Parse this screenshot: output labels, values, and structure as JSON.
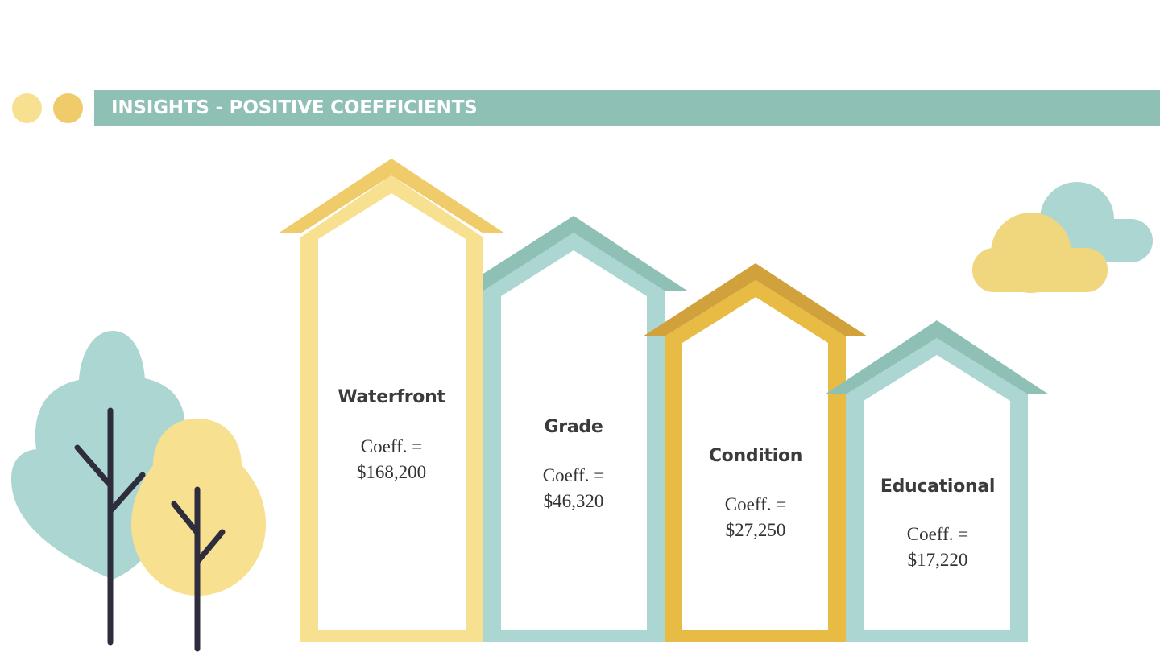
{
  "header": {
    "title": "INSIGHTS - POSITIVE COEFFICIENTS"
  },
  "colors": {
    "teal_bar": "#8fc0b6",
    "light_yellow": "#f7e08f",
    "gold": "#f0cb6a",
    "light_teal": "#acd6d1",
    "dark_teal": "#8fc0b6",
    "mustard": "#e8bb45",
    "dark_mustard": "#d1a23b",
    "tree_trunk": "#2e2d3d"
  },
  "houses": [
    {
      "label": "Waterfront",
      "coeff_label": "Coeff. =",
      "coeff_value": "$168,200"
    },
    {
      "label": "Grade",
      "coeff_label": "Coeff. =",
      "coeff_value": "$46,320"
    },
    {
      "label": "Condition",
      "coeff_label": "Coeff. =",
      "coeff_value": "$27,250"
    },
    {
      "label": "Educational",
      "coeff_label": "Coeff. =",
      "coeff_value": "$17,220"
    }
  ]
}
